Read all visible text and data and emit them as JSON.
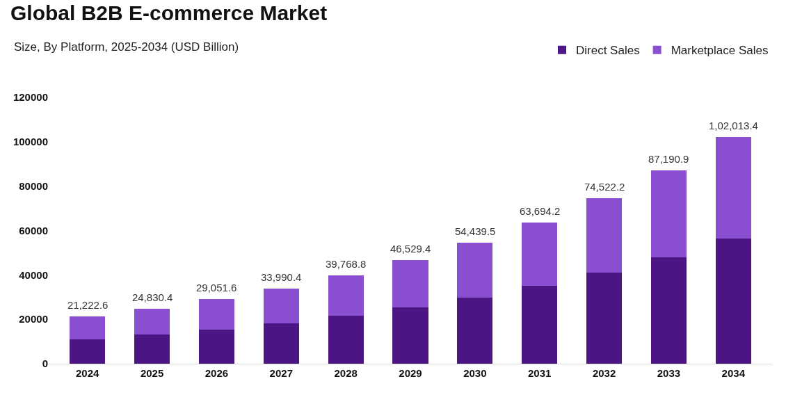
{
  "chart_data": {
    "type": "bar",
    "stacked": true,
    "title": "Global B2B E-commerce Market",
    "subtitle": "Size, By Platform, 2025-2034 (USD Billion)",
    "categories": [
      "2024",
      "2025",
      "2026",
      "2027",
      "2028",
      "2029",
      "2030",
      "2031",
      "2032",
      "2033",
      "2034"
    ],
    "series": [
      {
        "name": "Direct Sales",
        "color": "#4b1584",
        "values": [
          10900,
          13100,
          15400,
          18300,
          21500,
          25300,
          29800,
          35000,
          41000,
          48000,
          56400
        ]
      },
      {
        "name": "Marketplace Sales",
        "color": "#8a4fd0",
        "values": [
          10322.6,
          11730.4,
          13651.6,
          15690.4,
          18268.8,
          21229.4,
          24639.5,
          28694.2,
          33522.2,
          39190.9,
          45613.4
        ]
      }
    ],
    "totals": [
      "21,222.6",
      "24,830.4",
      "29,051.6",
      "33,990.4",
      "39,768.8",
      "46,529.4",
      "54,439.5",
      "63,694.2",
      "74,522.2",
      "87,190.9",
      "1,02,013.4"
    ],
    "ylim": [
      0,
      120000
    ],
    "yticks": [
      0,
      20000,
      40000,
      60000,
      80000,
      100000,
      120000
    ],
    "legend": "top right"
  }
}
